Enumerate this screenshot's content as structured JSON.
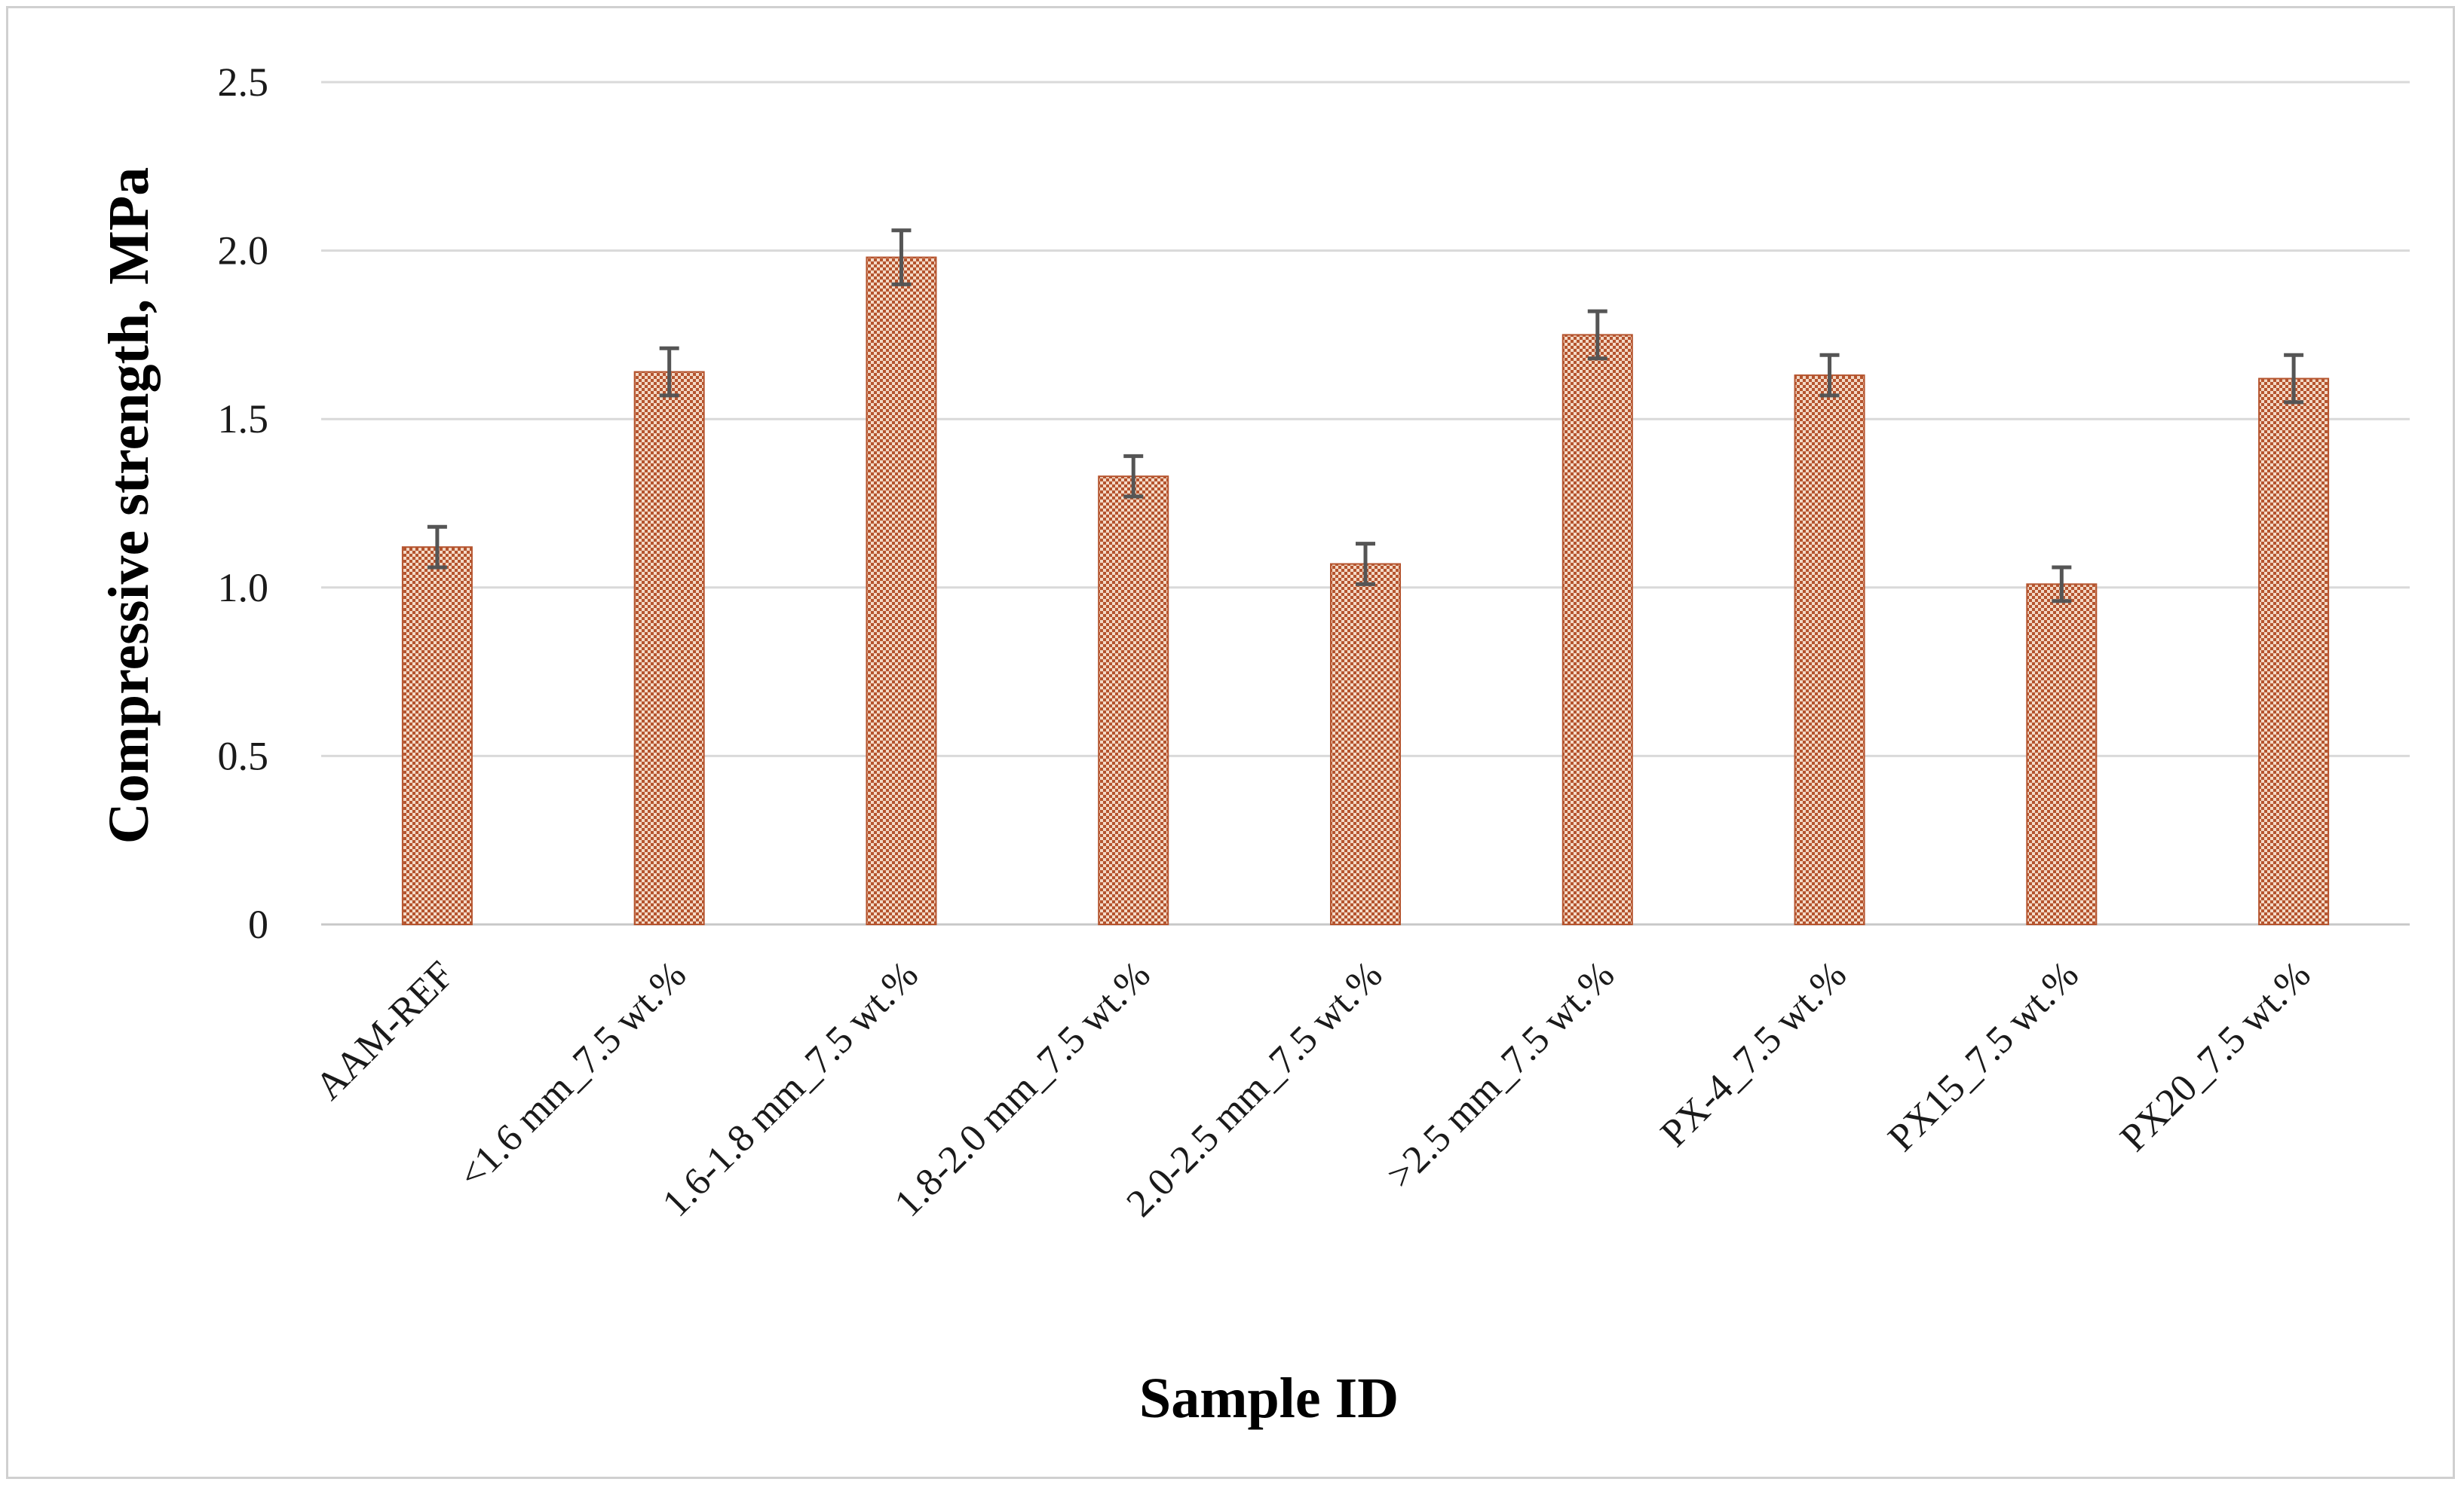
{
  "chart_data": {
    "type": "bar",
    "title": "",
    "xlabel": "Sample ID",
    "ylabel": "Compressive strength, MPa",
    "ylim": [
      0,
      2.5
    ],
    "yticks": [
      0,
      0.5,
      1.0,
      1.5,
      2.0,
      2.5
    ],
    "ytick_labels": [
      "0",
      "0.5",
      "1.0",
      "1.5",
      "2.0",
      "2.5"
    ],
    "grid": true,
    "legend": "none",
    "bar_color": "#b5542e",
    "categories": [
      "AAM-REF",
      "<1.6 mm_7.5 wt.%",
      "1.6-1.8 mm_7.5 wt.%",
      "1.8-2.0 mm_7.5 wt.%",
      "2.0-2.5 mm_7.5 wt.%",
      ">2.5 mm_7.5 wt.%",
      "PX-4_7.5 wt.%",
      "PX15_7.5 wt.%",
      "PX20_7.5 wt.%"
    ],
    "values": [
      1.12,
      1.64,
      1.98,
      1.33,
      1.07,
      1.75,
      1.63,
      1.01,
      1.62
    ],
    "errors": [
      0.06,
      0.07,
      0.08,
      0.06,
      0.06,
      0.07,
      0.06,
      0.05,
      0.07
    ]
  }
}
